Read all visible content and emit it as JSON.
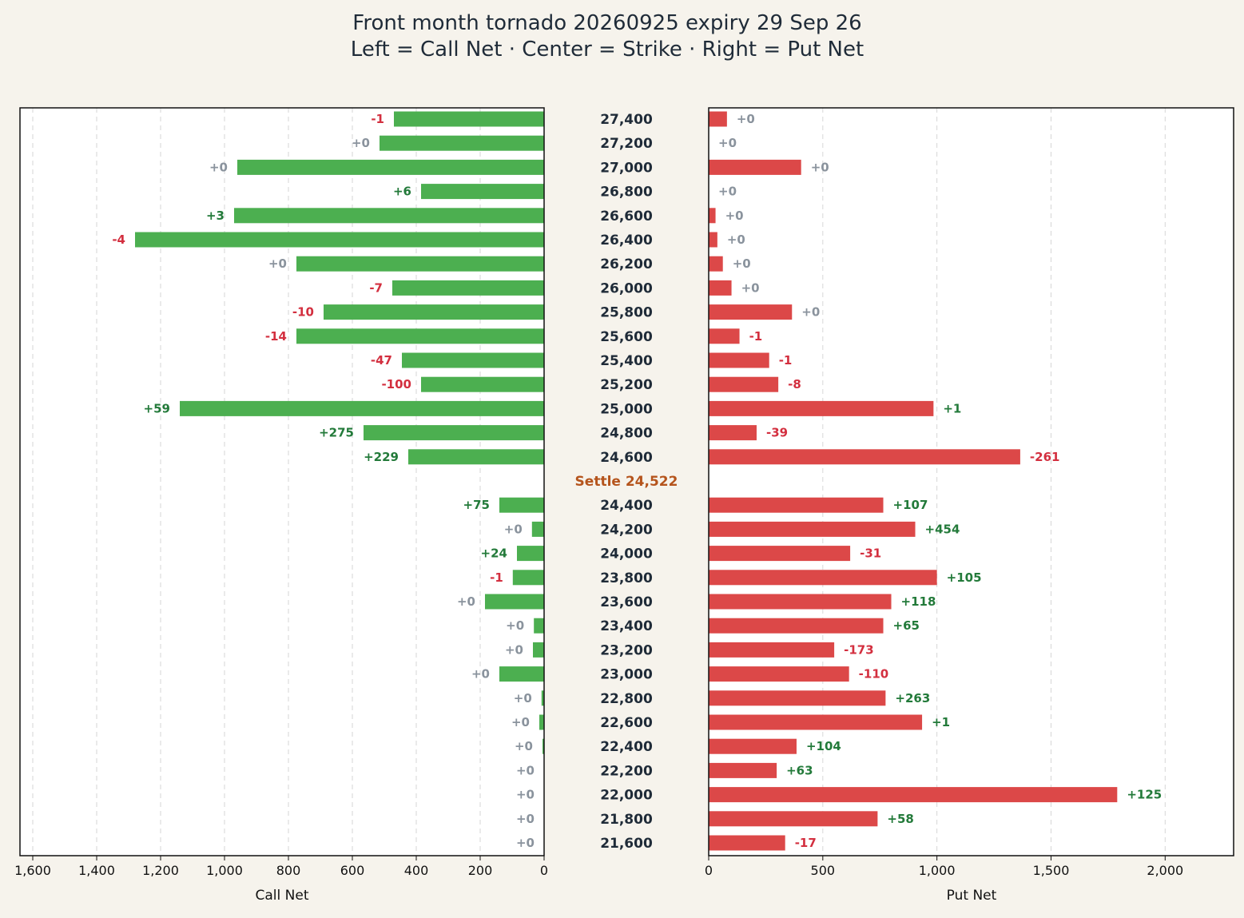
{
  "chart_data": {
    "type": "bar",
    "title": "Front month tornado  20260925  expiry 29 Sep 26",
    "subtitle": "Left = Call Net · Center = Strike · Right = Put Net",
    "settle_label": "Settle 24,522",
    "left_axis": {
      "xlabel": "Call Net",
      "xlim": [
        1640,
        0
      ],
      "ticks": [
        1600,
        1400,
        1200,
        1000,
        800,
        600,
        400,
        200,
        0
      ],
      "tick_labels": [
        "1,600",
        "1,400",
        "1,200",
        "1,000",
        "800",
        "600",
        "400",
        "200",
        "0"
      ],
      "grid": true
    },
    "right_axis": {
      "xlabel": "Put Net",
      "xlim": [
        0,
        2300
      ],
      "ticks": [
        0,
        500,
        1000,
        1500,
        2000
      ],
      "tick_labels": [
        "0",
        "500",
        "1,000",
        "1,500",
        "2,000"
      ],
      "grid": true
    },
    "colors": {
      "call_bar": "#4caf50",
      "put_bar": "#dc4848",
      "positive_change": "#237a3a",
      "negative_change": "#d32f3f",
      "zero_change": "#8a939d",
      "settle": "#b5541c",
      "text": "#1f2b38"
    },
    "rows": [
      {
        "strike": "27,400",
        "call": 470,
        "call_change": "-1",
        "put": 80,
        "put_change": "+0"
      },
      {
        "strike": "27,200",
        "call": 515,
        "call_change": "+0",
        "put": 0,
        "put_change": "+0"
      },
      {
        "strike": "27,000",
        "call": 960,
        "call_change": "+0",
        "put": 405,
        "put_change": "+0"
      },
      {
        "strike": "26,800",
        "call": 385,
        "call_change": "+6",
        "put": 0,
        "put_change": "+0"
      },
      {
        "strike": "26,600",
        "call": 970,
        "call_change": "+3",
        "put": 30,
        "put_change": "+0"
      },
      {
        "strike": "26,400",
        "call": 1280,
        "call_change": "-4",
        "put": 38,
        "put_change": "+0"
      },
      {
        "strike": "26,200",
        "call": 775,
        "call_change": "+0",
        "put": 62,
        "put_change": "+0"
      },
      {
        "strike": "26,000",
        "call": 475,
        "call_change": "-7",
        "put": 100,
        "put_change": "+0"
      },
      {
        "strike": "25,800",
        "call": 690,
        "call_change": "-10",
        "put": 365,
        "put_change": "+0"
      },
      {
        "strike": "25,600",
        "call": 775,
        "call_change": "-14",
        "put": 135,
        "put_change": "-1"
      },
      {
        "strike": "25,400",
        "call": 445,
        "call_change": "-47",
        "put": 265,
        "put_change": "-1"
      },
      {
        "strike": "25,200",
        "call": 385,
        "call_change": "-100",
        "put": 305,
        "put_change": "-8"
      },
      {
        "strike": "25,000",
        "call": 1140,
        "call_change": "+59",
        "put": 985,
        "put_change": "+1"
      },
      {
        "strike": "24,800",
        "call": 565,
        "call_change": "+275",
        "put": 210,
        "put_change": "-39"
      },
      {
        "strike": "24,600",
        "call": 425,
        "call_change": "+229",
        "put": 1365,
        "put_change": "-261"
      },
      {
        "settle": true
      },
      {
        "strike": "24,400",
        "call": 140,
        "call_change": "+75",
        "put": 765,
        "put_change": "+107"
      },
      {
        "strike": "24,200",
        "call": 38,
        "call_change": "+0",
        "put": 905,
        "put_change": "+454"
      },
      {
        "strike": "24,000",
        "call": 85,
        "call_change": "+24",
        "put": 620,
        "put_change": "-31"
      },
      {
        "strike": "23,800",
        "call": 98,
        "call_change": "-1",
        "put": 1000,
        "put_change": "+105"
      },
      {
        "strike": "23,600",
        "call": 185,
        "call_change": "+0",
        "put": 800,
        "put_change": "+118"
      },
      {
        "strike": "23,400",
        "call": 32,
        "call_change": "+0",
        "put": 765,
        "put_change": "+65"
      },
      {
        "strike": "23,200",
        "call": 35,
        "call_change": "+0",
        "put": 550,
        "put_change": "-173"
      },
      {
        "strike": "23,000",
        "call": 140,
        "call_change": "+0",
        "put": 615,
        "put_change": "-110"
      },
      {
        "strike": "22,800",
        "call": 8,
        "call_change": "+0",
        "put": 775,
        "put_change": "+263"
      },
      {
        "strike": "22,600",
        "call": 15,
        "call_change": "+0",
        "put": 935,
        "put_change": "+1"
      },
      {
        "strike": "22,400",
        "call": 5,
        "call_change": "+0",
        "put": 385,
        "put_change": "+104"
      },
      {
        "strike": "22,200",
        "call": 0,
        "call_change": "+0",
        "put": 298,
        "put_change": "+63"
      },
      {
        "strike": "22,000",
        "call": 0,
        "call_change": "+0",
        "put": 1790,
        "put_change": "+125"
      },
      {
        "strike": "21,800",
        "call": 0,
        "call_change": "+0",
        "put": 740,
        "put_change": "+58"
      },
      {
        "strike": "21,600",
        "call": 0,
        "call_change": "+0",
        "put": 335,
        "put_change": "-17"
      }
    ]
  }
}
